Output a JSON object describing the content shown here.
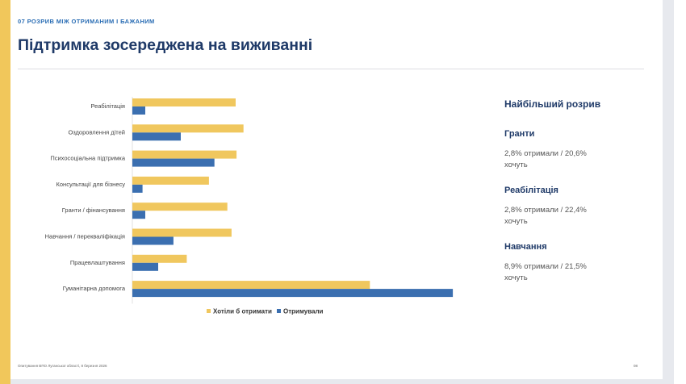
{
  "header": {
    "kicker": "07  РОЗРИВ МІЖ ОТРИМАНИМ І БАЖАНИМ",
    "title": "Підтримка зосереджена на виживанні"
  },
  "chart_data": {
    "type": "bar",
    "orientation": "horizontal",
    "categories": [
      "Реабілітація",
      "Оздоровлення дітей",
      "Психосоціальна підтримка",
      "Консультації для бізнесу",
      "Гранти / фінансування",
      "Навчання / перекваліфікація",
      "Працевлаштування",
      "Гуманітарна допомога"
    ],
    "series": [
      {
        "name": "Хотіли б отримати",
        "color": "#f0c75e",
        "values": [
          22.4,
          24.1,
          22.6,
          16.6,
          20.6,
          21.5,
          11.8,
          51.5
        ]
      },
      {
        "name": "Отримували",
        "color": "#3b6fb0",
        "values": [
          2.8,
          10.5,
          17.8,
          2.2,
          2.8,
          8.9,
          5.6,
          69.5
        ]
      }
    ],
    "xlim": [
      0,
      70
    ],
    "grid": false,
    "legend": "bottom"
  },
  "side": {
    "heading": "Найбільший розрив",
    "items": [
      {
        "name": "Гранти",
        "line1": "2,8% отримали  /  20,6%",
        "line2": "хочуть"
      },
      {
        "name": "Реабілітація",
        "line1": "2,8% отримали  /  22,4%",
        "line2": "хочуть"
      },
      {
        "name": "Навчання",
        "line1": "8,9% отримали  /  21,5%",
        "line2": "хочуть"
      }
    ]
  },
  "footer": {
    "source": "Опитування ВПО Луганської області, 8 березня 2026",
    "page": "08"
  }
}
